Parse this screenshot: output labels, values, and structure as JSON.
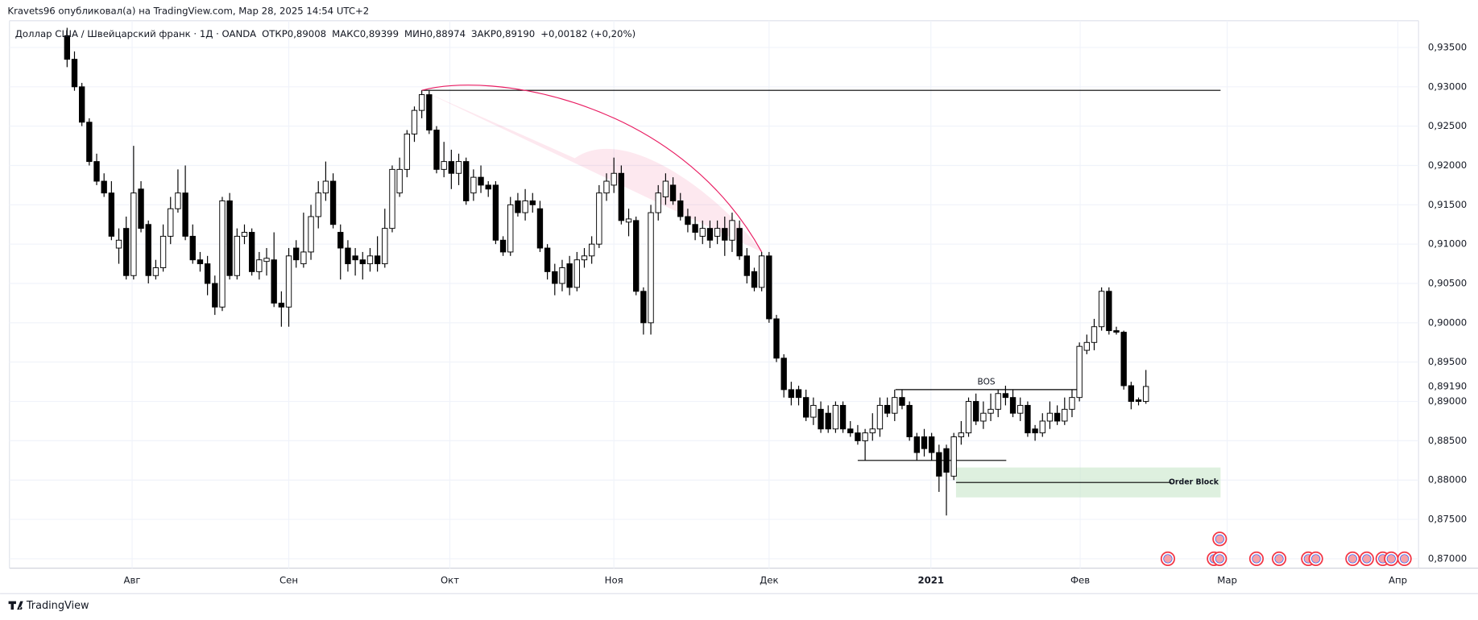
{
  "header": "Kravets96 опубликовал(а) на TradingView.com, Мар 28, 2025 14:54 UTC+2",
  "footer": "TradingView",
  "chart_data": {
    "type": "candlestick",
    "symbol": "Доллар США / Швейцарский франк · 1Д · OANDA",
    "legend": [
      {
        "label": "ОТКР",
        "value": "0,89008"
      },
      {
        "label": "МАКС",
        "value": "0,89399"
      },
      {
        "label": "МИН",
        "value": "0,88974"
      },
      {
        "label": "ЗАКР",
        "value": "0,89190"
      }
    ],
    "change": "+0,00182 (+0,20%)",
    "ohlc": [
      [
        0.9365,
        0.9375,
        0.9325,
        0.9335
      ],
      [
        0.9335,
        0.9345,
        0.9295,
        0.93
      ],
      [
        0.93,
        0.9305,
        0.925,
        0.9255
      ],
      [
        0.9255,
        0.926,
        0.92,
        0.9205
      ],
      [
        0.9205,
        0.9215,
        0.9175,
        0.918
      ],
      [
        0.918,
        0.919,
        0.916,
        0.9165
      ],
      [
        0.9165,
        0.918,
        0.9105,
        0.911
      ],
      [
        0.9095,
        0.912,
        0.9075,
        0.9105
      ],
      [
        0.912,
        0.9135,
        0.9055,
        0.906
      ],
      [
        0.906,
        0.9225,
        0.9055,
        0.9165
      ],
      [
        0.917,
        0.918,
        0.9115,
        0.912
      ],
      [
        0.9125,
        0.913,
        0.905,
        0.906
      ],
      [
        0.906,
        0.908,
        0.9055,
        0.907
      ],
      [
        0.907,
        0.9125,
        0.9065,
        0.911
      ],
      [
        0.911,
        0.916,
        0.91,
        0.9145
      ],
      [
        0.9145,
        0.9195,
        0.914,
        0.9165
      ],
      [
        0.9165,
        0.92,
        0.9105,
        0.911
      ],
      [
        0.911,
        0.9125,
        0.9075,
        0.908
      ],
      [
        0.908,
        0.909,
        0.9065,
        0.9075
      ],
      [
        0.9075,
        0.9085,
        0.9035,
        0.905
      ],
      [
        0.905,
        0.906,
        0.901,
        0.902
      ],
      [
        0.902,
        0.916,
        0.9015,
        0.9155
      ],
      [
        0.9155,
        0.9165,
        0.9055,
        0.906
      ],
      [
        0.906,
        0.912,
        0.9055,
        0.911
      ],
      [
        0.911,
        0.9125,
        0.91,
        0.9115
      ],
      [
        0.9115,
        0.912,
        0.906,
        0.9065
      ],
      [
        0.9065,
        0.909,
        0.9055,
        0.908
      ],
      [
        0.9078,
        0.9095,
        0.906,
        0.9082
      ],
      [
        0.908,
        0.9115,
        0.902,
        0.9025
      ],
      [
        0.9025,
        0.904,
        0.8995,
        0.902
      ],
      [
        0.902,
        0.9095,
        0.8995,
        0.9085
      ],
      [
        0.9095,
        0.9105,
        0.907,
        0.908
      ],
      [
        0.9075,
        0.914,
        0.907,
        0.909
      ],
      [
        0.909,
        0.915,
        0.908,
        0.9135
      ],
      [
        0.9135,
        0.918,
        0.912,
        0.9165
      ],
      [
        0.9165,
        0.9205,
        0.9155,
        0.918
      ],
      [
        0.918,
        0.919,
        0.912,
        0.9125
      ],
      [
        0.9115,
        0.9125,
        0.9055,
        0.9095
      ],
      [
        0.9095,
        0.9105,
        0.9065,
        0.9075
      ],
      [
        0.9085,
        0.9095,
        0.906,
        0.908
      ],
      [
        0.908,
        0.909,
        0.9055,
        0.9075
      ],
      [
        0.9075,
        0.9095,
        0.9065,
        0.9085
      ],
      [
        0.9085,
        0.911,
        0.9065,
        0.9075
      ],
      [
        0.9075,
        0.9145,
        0.907,
        0.912
      ],
      [
        0.912,
        0.92,
        0.9115,
        0.9195
      ],
      [
        0.9165,
        0.921,
        0.916,
        0.9195
      ],
      [
        0.9195,
        0.9245,
        0.9185,
        0.924
      ],
      [
        0.924,
        0.9275,
        0.923,
        0.927
      ],
      [
        0.927,
        0.92955,
        0.926,
        0.929
      ],
      [
        0.929,
        0.9295,
        0.924,
        0.9245
      ],
      [
        0.9245,
        0.925,
        0.919,
        0.9195
      ],
      [
        0.9195,
        0.923,
        0.9185,
        0.9205
      ],
      [
        0.9205,
        0.922,
        0.917,
        0.919
      ],
      [
        0.919,
        0.9215,
        0.9175,
        0.9205
      ],
      [
        0.9205,
        0.921,
        0.915,
        0.9155
      ],
      [
        0.9165,
        0.9195,
        0.9155,
        0.9185
      ],
      [
        0.9185,
        0.92,
        0.9165,
        0.9175
      ],
      [
        0.9175,
        0.918,
        0.916,
        0.917
      ],
      [
        0.9175,
        0.918,
        0.91,
        0.9105
      ],
      [
        0.9105,
        0.911,
        0.9085,
        0.909
      ],
      [
        0.909,
        0.916,
        0.9085,
        0.915
      ],
      [
        0.9155,
        0.9165,
        0.9135,
        0.914
      ],
      [
        0.914,
        0.917,
        0.913,
        0.9155
      ],
      [
        0.9155,
        0.9165,
        0.914,
        0.915
      ],
      [
        0.9145,
        0.9155,
        0.909,
        0.9095
      ],
      [
        0.9095,
        0.91,
        0.9055,
        0.9065
      ],
      [
        0.9065,
        0.9075,
        0.9035,
        0.905
      ],
      [
        0.905,
        0.908,
        0.904,
        0.907
      ],
      [
        0.9075,
        0.9085,
        0.9035,
        0.9045
      ],
      [
        0.9045,
        0.909,
        0.904,
        0.908
      ],
      [
        0.908,
        0.9095,
        0.907,
        0.9085
      ],
      [
        0.9085,
        0.911,
        0.9075,
        0.91
      ],
      [
        0.91,
        0.9175,
        0.9095,
        0.9165
      ],
      [
        0.9165,
        0.919,
        0.9155,
        0.918
      ],
      [
        0.9175,
        0.921,
        0.9165,
        0.919
      ],
      [
        0.919,
        0.92,
        0.9125,
        0.913
      ],
      [
        0.9128,
        0.9145,
        0.911,
        0.9132
      ],
      [
        0.913,
        0.9135,
        0.9035,
        0.904
      ],
      [
        0.904,
        0.9045,
        0.8985,
        0.9
      ],
      [
        0.9,
        0.915,
        0.8985,
        0.914
      ],
      [
        0.914,
        0.9175,
        0.913,
        0.9165
      ],
      [
        0.916,
        0.919,
        0.915,
        0.918
      ],
      [
        0.9175,
        0.9185,
        0.915,
        0.9155
      ],
      [
        0.9155,
        0.9165,
        0.913,
        0.9135
      ],
      [
        0.9135,
        0.9145,
        0.9115,
        0.9125
      ],
      [
        0.9125,
        0.9135,
        0.9105,
        0.9115
      ],
      [
        0.911,
        0.913,
        0.91,
        0.912
      ],
      [
        0.912,
        0.913,
        0.9095,
        0.9105
      ],
      [
        0.911,
        0.913,
        0.91,
        0.912
      ],
      [
        0.912,
        0.9135,
        0.9085,
        0.9105
      ],
      [
        0.9105,
        0.914,
        0.909,
        0.913
      ],
      [
        0.912,
        0.913,
        0.908,
        0.9085
      ],
      [
        0.9085,
        0.9095,
        0.905,
        0.906
      ],
      [
        0.9065,
        0.907,
        0.904,
        0.9045
      ],
      [
        0.9045,
        0.909,
        0.904,
        0.9085
      ],
      [
        0.9085,
        0.909,
        0.9,
        0.9005
      ],
      [
        0.9005,
        0.901,
        0.895,
        0.8955
      ],
      [
        0.8955,
        0.896,
        0.8905,
        0.8915
      ],
      [
        0.8915,
        0.8925,
        0.8895,
        0.8905
      ],
      [
        0.8915,
        0.892,
        0.8895,
        0.8905
      ],
      [
        0.8905,
        0.8915,
        0.8875,
        0.888
      ],
      [
        0.888,
        0.8905,
        0.887,
        0.8895
      ],
      [
        0.889,
        0.89,
        0.886,
        0.8865
      ],
      [
        0.8885,
        0.8895,
        0.886,
        0.8865
      ],
      [
        0.8865,
        0.89,
        0.886,
        0.8895
      ],
      [
        0.8895,
        0.89,
        0.886,
        0.8865
      ],
      [
        0.8865,
        0.8875,
        0.8855,
        0.886
      ],
      [
        0.886,
        0.887,
        0.8845,
        0.885
      ],
      [
        0.885,
        0.8865,
        0.8825,
        0.886
      ],
      [
        0.886,
        0.8885,
        0.885,
        0.8865
      ],
      [
        0.8865,
        0.8905,
        0.8855,
        0.8895
      ],
      [
        0.8895,
        0.8905,
        0.888,
        0.8885
      ],
      [
        0.8885,
        0.8915,
        0.8875,
        0.8905
      ],
      [
        0.8905,
        0.8915,
        0.889,
        0.8895
      ],
      [
        0.8895,
        0.89,
        0.885,
        0.8855
      ],
      [
        0.8855,
        0.886,
        0.8825,
        0.8835
      ],
      [
        0.8855,
        0.8865,
        0.883,
        0.884
      ],
      [
        0.8855,
        0.886,
        0.8825,
        0.8835
      ],
      [
        0.8835,
        0.8845,
        0.8785,
        0.8805
      ],
      [
        0.884,
        0.8845,
        0.8755,
        0.881
      ],
      [
        0.8805,
        0.886,
        0.88,
        0.8855
      ],
      [
        0.8855,
        0.8875,
        0.8845,
        0.886
      ],
      [
        0.886,
        0.8905,
        0.8855,
        0.89
      ],
      [
        0.89,
        0.891,
        0.887,
        0.8875
      ],
      [
        0.8875,
        0.89,
        0.8865,
        0.8885
      ],
      [
        0.8885,
        0.891,
        0.8875,
        0.889
      ],
      [
        0.889,
        0.8915,
        0.888,
        0.891
      ],
      [
        0.891,
        0.892,
        0.8895,
        0.8905
      ],
      [
        0.8905,
        0.8915,
        0.888,
        0.8885
      ],
      [
        0.8885,
        0.8905,
        0.8875,
        0.8895
      ],
      [
        0.8895,
        0.89,
        0.8855,
        0.886
      ],
      [
        0.8865,
        0.887,
        0.885,
        0.886
      ],
      [
        0.886,
        0.8885,
        0.8855,
        0.8875
      ],
      [
        0.8875,
        0.89,
        0.8865,
        0.8885
      ],
      [
        0.8885,
        0.8895,
        0.887,
        0.8875
      ],
      [
        0.8875,
        0.8905,
        0.887,
        0.889
      ],
      [
        0.889,
        0.8915,
        0.888,
        0.8905
      ],
      [
        0.8905,
        0.8975,
        0.89,
        0.897
      ],
      [
        0.8965,
        0.8985,
        0.896,
        0.8975
      ],
      [
        0.8975,
        0.9005,
        0.8965,
        0.8995
      ],
      [
        0.8995,
        0.9045,
        0.899,
        0.904
      ],
      [
        0.904,
        0.9045,
        0.8985,
        0.899
      ],
      [
        0.899,
        0.8995,
        0.8985,
        0.8988
      ],
      [
        0.8988,
        0.899,
        0.8915,
        0.892
      ],
      [
        0.892,
        0.8925,
        0.889,
        0.89
      ],
      [
        0.8902,
        0.8905,
        0.8895,
        0.89
      ],
      [
        0.89,
        0.894,
        0.8897,
        0.8919
      ]
    ],
    "up_color": "#ffffff",
    "down_color": "#000000",
    "wick_color": "#000000",
    "xlim": [
      -7.8,
      182.9
    ],
    "xticks": [
      {
        "value": 8.8,
        "label": "Авг"
      },
      {
        "value": 30.0,
        "label": "Сен"
      },
      {
        "value": 51.8,
        "label": "Окт"
      },
      {
        "value": 74.0,
        "label": "Ноя"
      },
      {
        "value": 95.0,
        "label": "Дек"
      },
      {
        "value": 116.9,
        "label": "2021"
      },
      {
        "value": 137.1,
        "label": "Фев"
      },
      {
        "value": 157.0,
        "label": "Мар"
      },
      {
        "value": 180.1,
        "label": "Апр"
      }
    ],
    "ylim": [
      0.8688,
      0.9384
    ],
    "yticks": [
      {
        "value": 0.935,
        "label": "0,93500"
      },
      {
        "value": 0.93,
        "label": "0,93000"
      },
      {
        "value": 0.925,
        "label": "0,92500"
      },
      {
        "value": 0.92,
        "label": "0,92000"
      },
      {
        "value": 0.915,
        "label": "0,91500"
      },
      {
        "value": 0.91,
        "label": "0,91000"
      },
      {
        "value": 0.905,
        "label": "0,90500"
      },
      {
        "value": 0.9,
        "label": "0,90000"
      },
      {
        "value": 0.895,
        "label": "0,89500"
      },
      {
        "value": 0.89,
        "label": "0,89000"
      },
      {
        "value": 0.885,
        "label": "0,88500"
      },
      {
        "value": 0.88,
        "label": "0,88000"
      },
      {
        "value": 0.875,
        "label": "0,87500"
      },
      {
        "value": 0.87,
        "label": "0,87000"
      }
    ],
    "last_price": {
      "value": 0.8919,
      "label": "0,89190"
    },
    "grid": true,
    "resistance": {
      "price": 0.92955,
      "from": 48,
      "to": 156.1,
      "color": "#000000"
    },
    "arc": {
      "from": [
        48,
        0.92955
      ],
      "to": [
        94,
        0.909
      ],
      "color": "#e91e63"
    },
    "bos": {
      "price": 0.8915,
      "from": 112.1,
      "to": 136.7,
      "label": "BOS"
    },
    "low_line": {
      "price": 0.8825,
      "from": 107,
      "to": 127.1
    },
    "order_block": {
      "top": 0.8816,
      "bottom": 0.8778,
      "mid": 0.8797,
      "from": 120.3,
      "to": 156.1,
      "label": "Order Block",
      "color": "#c8e6c9"
    }
  }
}
